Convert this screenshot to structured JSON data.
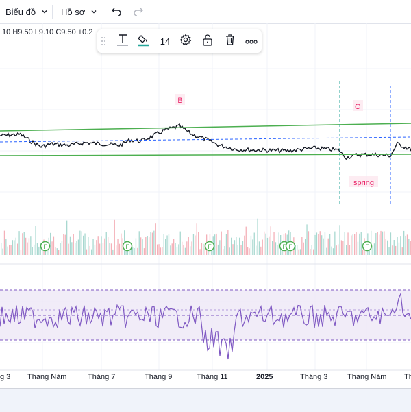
{
  "toolbar": {
    "chart_menu": "Biểu đồ",
    "profile_menu": "Hồ sơ"
  },
  "legend": {
    "ohlc": ".10  H9.50  L9.10  C9.50  +0.2"
  },
  "drawing_toolbar": {
    "font_size": "14"
  },
  "annotations": {
    "b": "B",
    "c": "C",
    "spring": "spring"
  },
  "events": {
    "marker": "F"
  },
  "x_axis": {
    "labels": [
      "g 3",
      "Tháng Năm",
      "Tháng 7",
      "Tháng 9",
      "Tháng 11",
      "2025",
      "Tháng 3",
      "Tháng Năm",
      "Th"
    ]
  },
  "colors": {
    "channel": "#4caf50",
    "annotation": "#e91e63",
    "rsi_line": "#7e57c2",
    "rsi_band": "#ede7f6",
    "vol_up": "#a8d8d0",
    "vol_down": "#f4b0b8",
    "cyan_line": "#26a69a",
    "dashed": "#2962ff"
  }
}
